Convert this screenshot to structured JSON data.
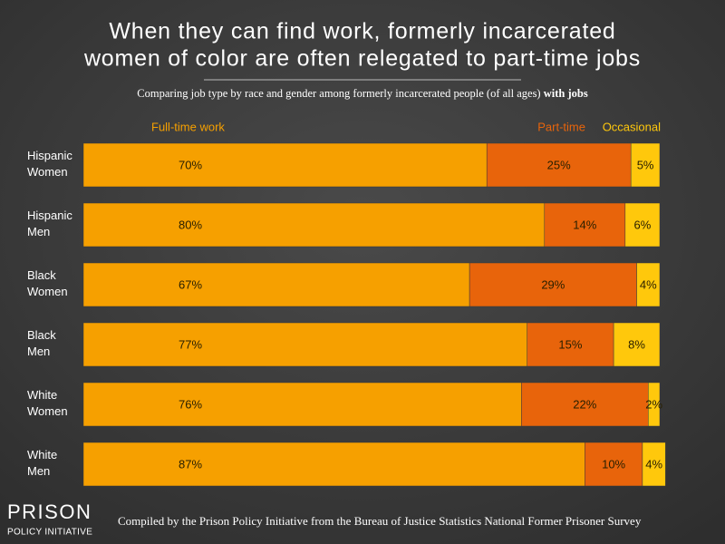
{
  "chart_data": {
    "type": "stacked-bar-horizontal",
    "title": [
      "When they can find work, formerly incarcerated",
      "women of color are often relegated to part-time jobs"
    ],
    "subtitle": "Comparing job type by race and gender among formerly incarcerated people (of all ages)",
    "subtitle_bold": "with jobs",
    "categories": [
      "Hispanic Women",
      "Hispanic Men",
      "Black Women",
      "Black Men",
      "White Women",
      "White Men"
    ],
    "xlim": [
      0,
      100
    ],
    "series": [
      {
        "name": "Full-time work",
        "color": "#f6a000",
        "values": [
          70,
          80,
          67,
          77,
          76,
          87
        ],
        "value_labels": [
          "70%",
          "80%",
          "67%",
          "77%",
          "76%",
          "87%"
        ]
      },
      {
        "name": "Part-time",
        "color": "#e8640b",
        "values": [
          25,
          14,
          29,
          15,
          22,
          10
        ],
        "value_labels": [
          "25%",
          "14%",
          "29%",
          "15%",
          "22%",
          "10%"
        ]
      },
      {
        "name": "Occasional",
        "color": "#ffc80c",
        "values": [
          5,
          6,
          4,
          8,
          2,
          4
        ],
        "value_labels": [
          "5%",
          "6%",
          "4%",
          "8%",
          "2%",
          "4%"
        ]
      }
    ],
    "source": "Compiled by the Prison Policy Initiative from the Bureau of Justice Statistics National Former Prisoner Survey",
    "logo": [
      "PRISON",
      "POLICY INITIATIVE"
    ]
  }
}
